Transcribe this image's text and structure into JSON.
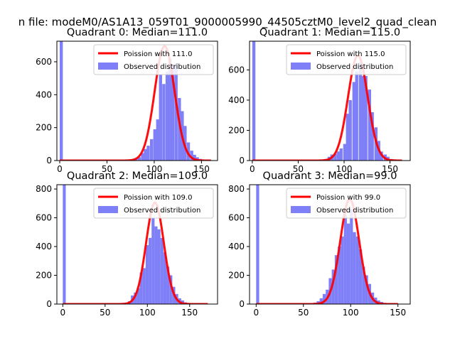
{
  "figure": {
    "suptitle": "n file: modeM0/AS1A13_059T01_9000005990_44505cztM0_level2_quad_clean"
  },
  "style": {
    "hist_color": "#7f7ff7",
    "fit_color": "#ff0000",
    "axis_color": "#000000"
  },
  "chart_data": [
    {
      "type": "bar",
      "title": "Quadrant 0: Median=111.0",
      "legend": [
        "Poission with 111.0",
        "Observed distribution"
      ],
      "legend_position": "top-right",
      "xlim": [
        -3,
        167
      ],
      "ylim": [
        0,
        725
      ],
      "xticks": [
        0,
        50,
        100,
        150
      ],
      "yticks": [
        0,
        200,
        400,
        600
      ],
      "fit": {
        "mean": 111.0,
        "peak": 695
      },
      "bin_width": 3.3,
      "bins": [
        [
          0,
          725
        ],
        [
          3.3,
          4
        ],
        [
          6.6,
          4
        ],
        [
          10,
          4
        ],
        [
          13,
          4
        ],
        [
          16.5,
          4
        ],
        [
          20,
          4
        ],
        [
          23,
          4
        ],
        [
          26.5,
          4
        ],
        [
          30,
          4
        ],
        [
          33,
          4
        ],
        [
          36,
          4
        ],
        [
          40,
          4
        ],
        [
          43,
          4
        ],
        [
          46,
          4
        ],
        [
          49.5,
          4
        ],
        [
          53,
          4
        ],
        [
          56,
          4
        ],
        [
          59,
          4
        ],
        [
          63,
          4
        ],
        [
          66,
          4
        ],
        [
          69,
          4
        ],
        [
          72.5,
          4
        ],
        [
          76,
          8
        ],
        [
          79,
          12
        ],
        [
          82.5,
          20
        ],
        [
          86,
          45
        ],
        [
          89,
          70
        ],
        [
          92,
          90
        ],
        [
          95.5,
          130
        ],
        [
          99,
          190
        ],
        [
          102,
          250
        ],
        [
          105,
          520
        ],
        [
          108.5,
          465
        ],
        [
          112,
          540
        ],
        [
          115,
          620
        ],
        [
          118,
          580
        ],
        [
          121.5,
          590
        ],
        [
          125,
          380
        ],
        [
          128,
          300
        ],
        [
          131,
          210
        ],
        [
          134.5,
          110
        ],
        [
          138,
          60
        ],
        [
          141,
          35
        ],
        [
          144,
          20
        ],
        [
          147.5,
          10
        ],
        [
          151,
          6
        ],
        [
          154,
          4
        ],
        [
          157,
          4
        ]
      ]
    },
    {
      "type": "bar",
      "title": "Quadrant 1: Median=115.0",
      "legend": [
        "Poission with 115.0",
        "Observed distribution"
      ],
      "legend_position": "top-right",
      "xlim": [
        -3,
        172
      ],
      "ylim": [
        0,
        790
      ],
      "xticks": [
        0,
        50,
        100,
        150
      ],
      "yticks": [
        0,
        200,
        400,
        600
      ],
      "fit": {
        "mean": 115.0,
        "peak": 695
      },
      "bin_width": 3.4,
      "bins": [
        [
          0,
          790
        ],
        [
          3.4,
          4
        ],
        [
          7,
          4
        ],
        [
          10,
          4
        ],
        [
          14,
          4
        ],
        [
          17,
          4
        ],
        [
          20.5,
          4
        ],
        [
          24,
          4
        ],
        [
          27,
          4
        ],
        [
          31,
          4
        ],
        [
          34,
          4
        ],
        [
          37.5,
          4
        ],
        [
          41,
          4
        ],
        [
          44,
          4
        ],
        [
          48,
          4
        ],
        [
          51,
          4
        ],
        [
          54.5,
          4
        ],
        [
          58,
          4
        ],
        [
          61,
          4
        ],
        [
          65,
          4
        ],
        [
          68,
          4
        ],
        [
          71.5,
          4
        ],
        [
          75,
          6
        ],
        [
          78,
          10
        ],
        [
          82,
          25
        ],
        [
          85,
          40
        ],
        [
          88.5,
          45
        ],
        [
          92,
          60
        ],
        [
          95,
          80
        ],
        [
          99,
          110
        ],
        [
          102,
          310
        ],
        [
          105,
          400
        ],
        [
          109,
          520
        ],
        [
          112,
          590
        ],
        [
          116,
          650
        ],
        [
          119,
          560
        ],
        [
          122,
          560
        ],
        [
          126,
          470
        ],
        [
          129,
          320
        ],
        [
          133,
          220
        ],
        [
          136,
          130
        ],
        [
          139,
          60
        ],
        [
          143,
          40
        ],
        [
          146,
          25
        ],
        [
          150,
          10
        ],
        [
          153,
          8
        ],
        [
          156,
          6
        ],
        [
          160,
          4
        ]
      ]
    },
    {
      "type": "bar",
      "title": "Quadrant 2: Median=109.0",
      "legend": [
        "Poission with 109.0",
        "Observed distribution"
      ],
      "legend_position": "top-right",
      "xlim": [
        -7,
        183
      ],
      "ylim": [
        0,
        830
      ],
      "xticks": [
        0,
        50,
        100,
        150
      ],
      "yticks": [
        0,
        200,
        400,
        600,
        800
      ],
      "fit": {
        "mean": 109.0,
        "peak": 705
      },
      "bin_width": 3.5,
      "bins": [
        [
          0,
          830
        ],
        [
          3.5,
          4
        ],
        [
          7,
          4
        ],
        [
          10.5,
          4
        ],
        [
          14,
          4
        ],
        [
          17.5,
          4
        ],
        [
          21,
          4
        ],
        [
          24.5,
          4
        ],
        [
          28,
          4
        ],
        [
          31.5,
          4
        ],
        [
          35,
          4
        ],
        [
          38.5,
          4
        ],
        [
          42,
          4
        ],
        [
          45.5,
          4
        ],
        [
          49,
          4
        ],
        [
          52.5,
          4
        ],
        [
          56,
          4
        ],
        [
          59.5,
          4
        ],
        [
          63,
          4
        ],
        [
          66.5,
          4
        ],
        [
          70,
          6
        ],
        [
          73.5,
          10
        ],
        [
          77,
          20
        ],
        [
          80.5,
          60
        ],
        [
          84,
          80
        ],
        [
          87.5,
          110
        ],
        [
          91,
          220
        ],
        [
          94.5,
          250
        ],
        [
          98,
          410
        ],
        [
          101.5,
          460
        ],
        [
          105,
          600
        ],
        [
          108.5,
          540
        ],
        [
          112,
          520
        ],
        [
          115.5,
          460
        ],
        [
          119,
          360
        ],
        [
          122.5,
          260
        ],
        [
          126,
          200
        ],
        [
          129.5,
          120
        ],
        [
          133,
          70
        ],
        [
          136.5,
          40
        ],
        [
          140,
          25
        ],
        [
          143.5,
          12
        ],
        [
          147,
          8
        ],
        [
          150.5,
          6
        ],
        [
          154,
          4
        ],
        [
          157.5,
          4
        ],
        [
          161,
          4
        ],
        [
          164.5,
          4
        ],
        [
          168,
          4
        ]
      ]
    },
    {
      "type": "bar",
      "title": "Quadrant 3: Median=99.0",
      "legend": [
        "Poission with 99.0",
        "Observed distribution"
      ],
      "legend_position": "top-right",
      "xlim": [
        -7,
        163
      ],
      "ylim": [
        0,
        830
      ],
      "xticks": [
        0,
        50,
        100,
        150
      ],
      "yticks": [
        0,
        200,
        400,
        600,
        800
      ],
      "fit": {
        "mean": 99.0,
        "peak": 730
      },
      "bin_width": 3.2,
      "bins": [
        [
          0,
          830
        ],
        [
          3.2,
          4
        ],
        [
          6.4,
          4
        ],
        [
          9.6,
          4
        ],
        [
          12.8,
          4
        ],
        [
          16,
          4
        ],
        [
          19.2,
          4
        ],
        [
          22.4,
          4
        ],
        [
          25.6,
          4
        ],
        [
          28.8,
          4
        ],
        [
          32,
          4
        ],
        [
          35.2,
          4
        ],
        [
          38.4,
          4
        ],
        [
          41.6,
          4
        ],
        [
          44.8,
          4
        ],
        [
          48,
          4
        ],
        [
          51.2,
          4
        ],
        [
          54.4,
          4
        ],
        [
          57.6,
          6
        ],
        [
          60.8,
          10
        ],
        [
          64,
          20
        ],
        [
          67.2,
          40
        ],
        [
          70.4,
          70
        ],
        [
          73.6,
          100
        ],
        [
          76.8,
          180
        ],
        [
          80,
          240
        ],
        [
          83.2,
          340
        ],
        [
          86.4,
          400
        ],
        [
          89.6,
          470
        ],
        [
          92.8,
          620
        ],
        [
          96,
          560
        ],
        [
          99.2,
          660
        ],
        [
          102.4,
          500
        ],
        [
          105.6,
          470
        ],
        [
          108.8,
          380
        ],
        [
          112,
          260
        ],
        [
          115.2,
          200
        ],
        [
          118.4,
          140
        ],
        [
          121.6,
          80
        ],
        [
          124.8,
          45
        ],
        [
          128,
          25
        ],
        [
          131.2,
          15
        ],
        [
          134.4,
          8
        ],
        [
          137.6,
          6
        ],
        [
          140.8,
          4
        ],
        [
          144,
          4
        ],
        [
          147.2,
          4
        ]
      ]
    }
  ]
}
